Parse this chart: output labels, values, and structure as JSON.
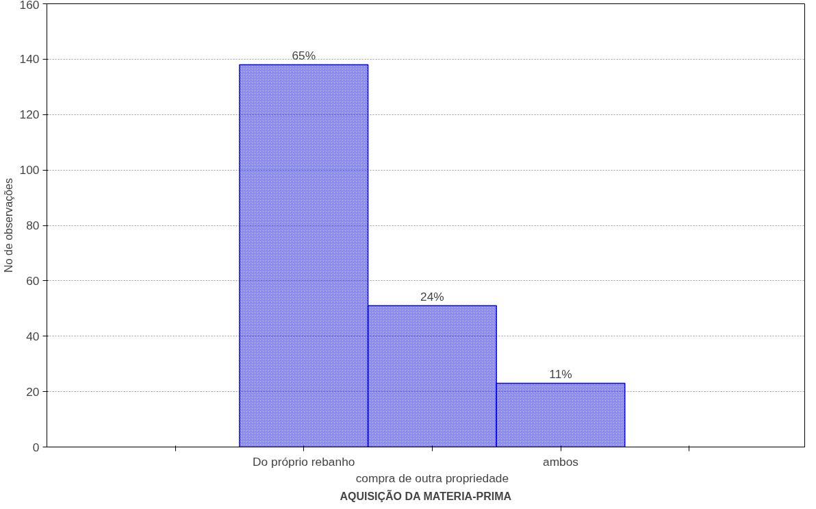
{
  "chart_data": {
    "type": "bar",
    "xlabel": "AQUISIÇÃO DA MATERIA-PRIMA",
    "ylabel": "No de observações",
    "categories": [
      null,
      "Do próprio rebanho",
      "compra de outra propriedade",
      "ambos",
      null
    ],
    "series": [
      {
        "color": "#0000ff",
        "values": [
          null,
          138,
          51,
          23,
          null
        ]
      }
    ],
    "annotations": [
      {
        "text": "65%",
        "x": "Do próprio rebanho",
        "y": 138
      },
      {
        "text": "24%",
        "x": "compra de outra propriedade",
        "y": 51
      },
      {
        "text": "11%",
        "x": "ambos",
        "y": 23
      }
    ],
    "ylim": [
      0,
      160
    ],
    "yticks": [
      0,
      20,
      40,
      60,
      80,
      100,
      120,
      140,
      160
    ],
    "grid": "y"
  }
}
